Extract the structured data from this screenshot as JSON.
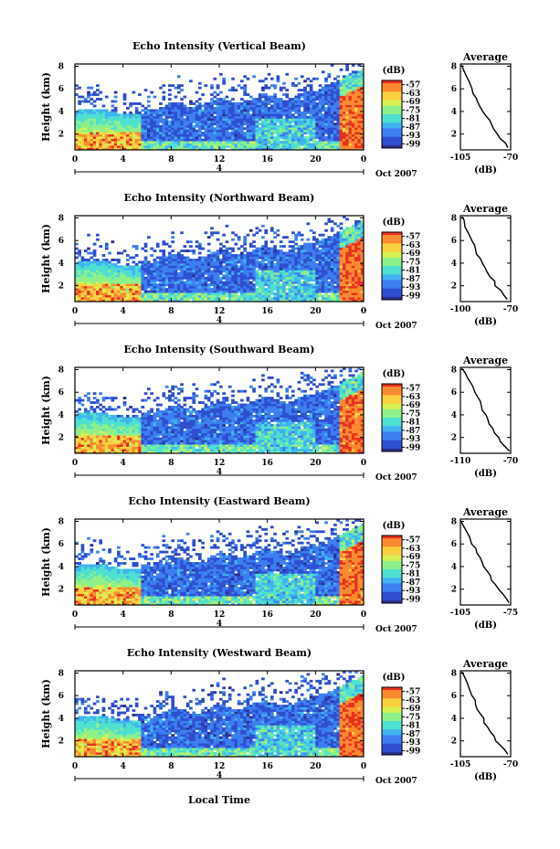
{
  "figure": {
    "xlabel": "Local Time",
    "date_suffix": "Oct 2007",
    "date_marker": "4",
    "unit": "(dB)",
    "average_title": "Average",
    "avg_xlabel": "(dB)",
    "colormap": [
      "#2b2f8f",
      "#2f4fd0",
      "#3d7ff0",
      "#40b3f0",
      "#4fe0d0",
      "#8ef08a",
      "#d8f050",
      "#f8d040",
      "#f88a30",
      "#e83020"
    ]
  },
  "chart_data": [
    {
      "type": "heatmap",
      "title": "Echo Intensity (Vertical Beam)",
      "xlabel": "Local Time",
      "ylabel": "Height (km)",
      "x_ticks": [
        "0",
        "4",
        "8",
        "12",
        "16",
        "20",
        "0"
      ],
      "y_ticks": [
        "2",
        "4",
        "6",
        "8"
      ],
      "xlim": [
        0,
        24
      ],
      "ylim": [
        0.6,
        8.2
      ],
      "colorbar_ticks": [
        "-57",
        "-63",
        "-69",
        "-75",
        "-81",
        "-87",
        "-93",
        "-99"
      ],
      "average": {
        "title": "Average",
        "xlabel": "(dB)",
        "x_ticks": [
          "-105",
          "-70"
        ],
        "xlim": [
          -105,
          -70
        ],
        "y_ticks": [
          "2",
          "4",
          "6",
          "8"
        ],
        "profile": [
          [
            -72,
            0.8
          ],
          [
            -74,
            1.2
          ],
          [
            -77,
            1.6
          ],
          [
            -79,
            2.0
          ],
          [
            -82,
            2.4
          ],
          [
            -83,
            2.8
          ],
          [
            -85,
            3.2
          ],
          [
            -87,
            3.6
          ],
          [
            -89,
            4.0
          ],
          [
            -91,
            4.4
          ],
          [
            -93,
            4.8
          ],
          [
            -94,
            5.2
          ],
          [
            -96,
            5.6
          ],
          [
            -97,
            6.0
          ],
          [
            -99,
            6.6
          ],
          [
            -101,
            7.2
          ],
          [
            -103,
            7.8
          ],
          [
            -104,
            8.1
          ]
        ]
      }
    },
    {
      "type": "heatmap",
      "title": "Echo Intensity (Northward Beam)",
      "xlabel": "Local Time",
      "ylabel": "Height (km)",
      "x_ticks": [
        "0",
        "4",
        "8",
        "12",
        "16",
        "20",
        "0"
      ],
      "y_ticks": [
        "2",
        "4",
        "6",
        "8"
      ],
      "xlim": [
        0,
        24
      ],
      "ylim": [
        0.6,
        8.2
      ],
      "colorbar_ticks": [
        "-57",
        "-63",
        "-69",
        "-75",
        "-81",
        "-87",
        "-93",
        "-99"
      ],
      "average": {
        "title": "Average",
        "xlabel": "(dB)",
        "x_ticks": [
          "-100",
          "-70"
        ],
        "xlim": [
          -100,
          -70
        ],
        "y_ticks": [
          "2",
          "4",
          "6",
          "8"
        ],
        "profile": [
          [
            -72,
            0.8
          ],
          [
            -74,
            1.2
          ],
          [
            -76,
            1.6
          ],
          [
            -79,
            2.0
          ],
          [
            -80,
            2.4
          ],
          [
            -82,
            2.8
          ],
          [
            -84,
            3.2
          ],
          [
            -85,
            3.6
          ],
          [
            -87,
            4.0
          ],
          [
            -88,
            4.4
          ],
          [
            -90,
            4.8
          ],
          [
            -91,
            5.2
          ],
          [
            -92,
            5.6
          ],
          [
            -93,
            6.0
          ],
          [
            -95,
            6.6
          ],
          [
            -97,
            7.2
          ],
          [
            -98,
            7.8
          ],
          [
            -99,
            8.1
          ]
        ]
      }
    },
    {
      "type": "heatmap",
      "title": "Echo Intensity (Southward Beam)",
      "xlabel": "Local Time",
      "ylabel": "Height (km)",
      "x_ticks": [
        "0",
        "4",
        "8",
        "12",
        "16",
        "20",
        "0"
      ],
      "y_ticks": [
        "2",
        "4",
        "6",
        "8"
      ],
      "xlim": [
        0,
        24
      ],
      "ylim": [
        0.6,
        8.2
      ],
      "colorbar_ticks": [
        "-57",
        "-63",
        "-69",
        "-75",
        "-81",
        "-87",
        "-93",
        "-99"
      ],
      "average": {
        "title": "Average",
        "xlabel": "(dB)",
        "x_ticks": [
          "-110",
          "-70"
        ],
        "xlim": [
          -110,
          -70
        ],
        "y_ticks": [
          "2",
          "4",
          "6",
          "8"
        ],
        "profile": [
          [
            -71,
            0.8
          ],
          [
            -74,
            1.2
          ],
          [
            -78,
            1.6
          ],
          [
            -80,
            2.0
          ],
          [
            -83,
            2.4
          ],
          [
            -85,
            2.8
          ],
          [
            -87,
            3.2
          ],
          [
            -88,
            3.6
          ],
          [
            -90,
            4.0
          ],
          [
            -92,
            4.4
          ],
          [
            -93,
            4.8
          ],
          [
            -94,
            5.2
          ],
          [
            -96,
            5.6
          ],
          [
            -98,
            6.0
          ],
          [
            -101,
            6.6
          ],
          [
            -104,
            7.2
          ],
          [
            -107,
            7.8
          ],
          [
            -109,
            8.1
          ]
        ]
      }
    },
    {
      "type": "heatmap",
      "title": "Echo Intensity (Eastward Beam)",
      "xlabel": "Local Time",
      "ylabel": "Height (km)",
      "x_ticks": [
        "0",
        "4",
        "8",
        "12",
        "16",
        "20",
        "0"
      ],
      "y_ticks": [
        "2",
        "4",
        "6",
        "8"
      ],
      "xlim": [
        0,
        24
      ],
      "ylim": [
        0.6,
        8.2
      ],
      "colorbar_ticks": [
        "-57",
        "-63",
        "-69",
        "-75",
        "-81",
        "-87",
        "-93",
        "-99"
      ],
      "average": {
        "title": "Average",
        "xlabel": "(dB)",
        "x_ticks": [
          "-105",
          "-75"
        ],
        "xlim": [
          -105,
          -75
        ],
        "y_ticks": [
          "2",
          "4",
          "6",
          "8"
        ],
        "profile": [
          [
            -76,
            0.8
          ],
          [
            -78,
            1.2
          ],
          [
            -80,
            1.6
          ],
          [
            -82,
            2.0
          ],
          [
            -84,
            2.4
          ],
          [
            -86,
            2.8
          ],
          [
            -87,
            3.2
          ],
          [
            -89,
            3.6
          ],
          [
            -91,
            4.0
          ],
          [
            -92,
            4.4
          ],
          [
            -93,
            4.8
          ],
          [
            -95,
            5.2
          ],
          [
            -96,
            5.6
          ],
          [
            -98,
            6.0
          ],
          [
            -100,
            6.6
          ],
          [
            -102,
            7.2
          ],
          [
            -104,
            7.8
          ],
          [
            -105,
            8.1
          ]
        ]
      }
    },
    {
      "type": "heatmap",
      "title": "Echo Intensity (Westward Beam)",
      "xlabel": "Local Time",
      "ylabel": "Height (km)",
      "x_ticks": [
        "0",
        "4",
        "8",
        "12",
        "16",
        "20",
        "0"
      ],
      "y_ticks": [
        "2",
        "4",
        "6",
        "8"
      ],
      "xlim": [
        0,
        24
      ],
      "ylim": [
        0.6,
        8.2
      ],
      "colorbar_ticks": [
        "-57",
        "-63",
        "-69",
        "-75",
        "-81",
        "-87",
        "-93",
        "-99"
      ],
      "average": {
        "title": "Average",
        "xlabel": "(dB)",
        "x_ticks": [
          "-105",
          "-70"
        ],
        "xlim": [
          -105,
          -70
        ],
        "y_ticks": [
          "2",
          "4",
          "6",
          "8"
        ],
        "profile": [
          [
            -72,
            0.8
          ],
          [
            -74,
            1.2
          ],
          [
            -77,
            1.6
          ],
          [
            -80,
            2.0
          ],
          [
            -82,
            2.4
          ],
          [
            -84,
            2.8
          ],
          [
            -86,
            3.2
          ],
          [
            -88,
            3.6
          ],
          [
            -89,
            4.0
          ],
          [
            -91,
            4.4
          ],
          [
            -93,
            4.8
          ],
          [
            -94,
            5.2
          ],
          [
            -95,
            5.6
          ],
          [
            -97,
            6.0
          ],
          [
            -99,
            6.6
          ],
          [
            -101,
            7.2
          ],
          [
            -103,
            7.8
          ],
          [
            -104,
            8.1
          ]
        ]
      }
    }
  ]
}
